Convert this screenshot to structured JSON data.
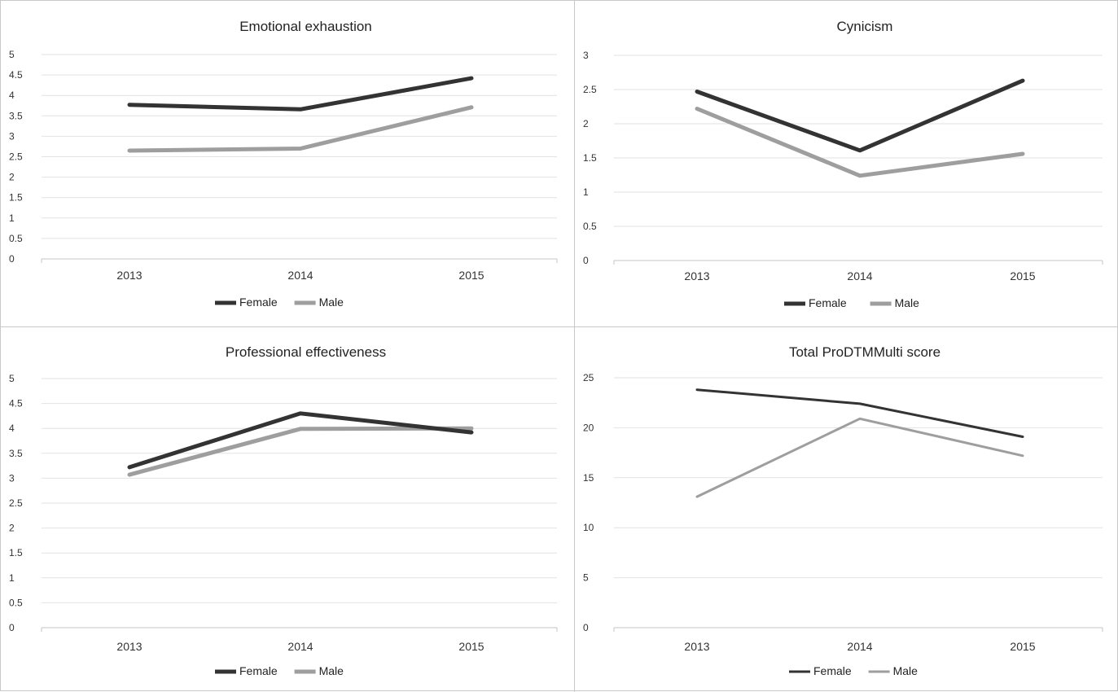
{
  "chart_data": [
    {
      "type": "line",
      "title": "Emotional exhaustion",
      "categories": [
        "2013",
        "2014",
        "2015"
      ],
      "yticks": [
        "0",
        "0.5",
        "1",
        "1.5",
        "2",
        "2.5",
        "3",
        "3.5",
        "4",
        "4.5",
        "5"
      ],
      "ylim": [
        0,
        5
      ],
      "grid": true,
      "legend_position": "bottom",
      "series": [
        {
          "name": "Female",
          "values": [
            3.77,
            3.66,
            4.42
          ]
        },
        {
          "name": "Male",
          "values": [
            2.65,
            2.7,
            3.71
          ]
        }
      ]
    },
    {
      "type": "line",
      "title": "Cynicism",
      "categories": [
        "2013",
        "2014",
        "2015"
      ],
      "yticks": [
        "0",
        "0.5",
        "1",
        "1.5",
        "2",
        "2.5",
        "3"
      ],
      "ylim": [
        0,
        3
      ],
      "grid": true,
      "legend_position": "bottom",
      "series": [
        {
          "name": "Female",
          "values": [
            2.47,
            1.61,
            2.63
          ]
        },
        {
          "name": "Male",
          "values": [
            2.22,
            1.24,
            1.56
          ]
        }
      ]
    },
    {
      "type": "line",
      "title": "Professional effectiveness",
      "categories": [
        "2013",
        "2014",
        "2015"
      ],
      "yticks": [
        "0",
        "0.5",
        "1",
        "1.5",
        "2",
        "2.5",
        "3",
        "3.5",
        "4",
        "4.5",
        "5"
      ],
      "ylim": [
        0,
        5
      ],
      "grid": true,
      "legend_position": "bottom",
      "series": [
        {
          "name": "Female",
          "values": [
            3.22,
            4.3,
            3.92
          ]
        },
        {
          "name": "Male",
          "values": [
            3.07,
            3.99,
            4.0
          ]
        }
      ]
    },
    {
      "type": "line",
      "title": "Total ProDTMMulti score",
      "categories": [
        "2013",
        "2014",
        "2015"
      ],
      "yticks": [
        "0",
        "5",
        "10",
        "15",
        "20",
        "25"
      ],
      "ylim": [
        0,
        25
      ],
      "grid": true,
      "legend_position": "bottom",
      "series": [
        {
          "name": "Female",
          "values": [
            23.8,
            22.4,
            19.1
          ]
        },
        {
          "name": "Male",
          "values": [
            13.1,
            20.9,
            17.2
          ]
        }
      ]
    }
  ],
  "colors": {
    "Female": "#333333",
    "Male": "#9e9e9e",
    "grid": "#e2e2e2",
    "axis": "#c4c4c4"
  }
}
